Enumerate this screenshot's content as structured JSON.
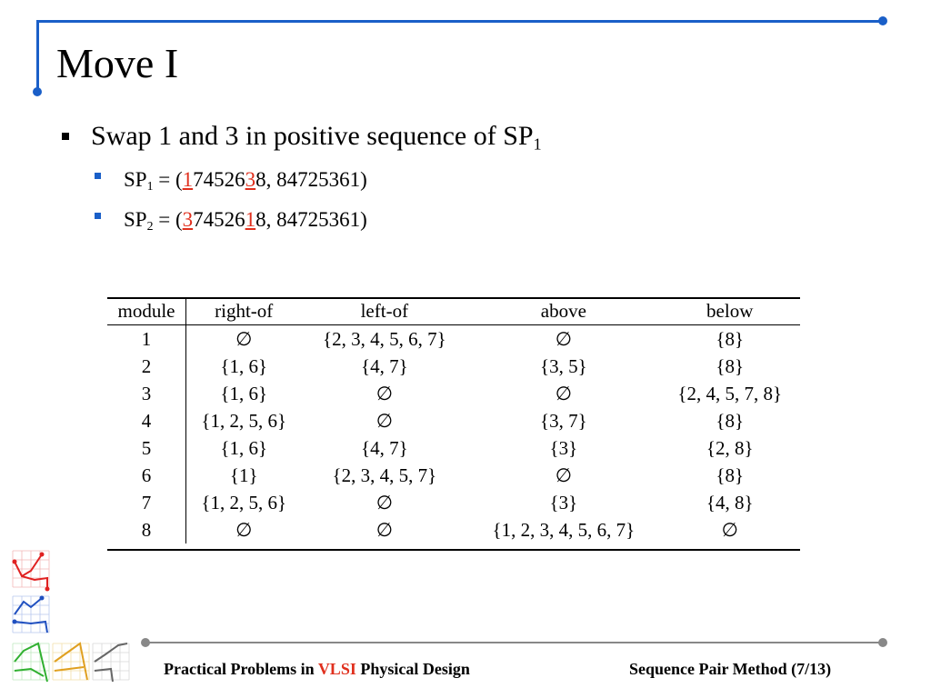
{
  "slide": {
    "title": "Move I",
    "bullet": {
      "text": "Swap 1 and 3 in positive sequence of SP",
      "sub": "1"
    },
    "subbullets": [
      {
        "label": "SP",
        "sub": "1",
        "prefix": " = (",
        "red1": "1",
        "mid": "74526",
        "red2": "3",
        "suffix": "8, 84725361)"
      },
      {
        "label": "SP",
        "sub": "2",
        "prefix": " = (",
        "red1": "3",
        "mid": "74526",
        "red2": "1",
        "suffix": "8, 84725361)"
      }
    ]
  },
  "table": {
    "headers": [
      "module",
      "right-of",
      "left-of",
      "above",
      "below"
    ],
    "rows": [
      [
        "1",
        "∅",
        "{2, 3, 4, 5, 6, 7}",
        "∅",
        "{8}"
      ],
      [
        "2",
        "{1, 6}",
        "{4, 7}",
        "{3, 5}",
        "{8}"
      ],
      [
        "3",
        "{1, 6}",
        "∅",
        "∅",
        "{2, 4, 5, 7, 8}"
      ],
      [
        "4",
        "{1, 2, 5, 6}",
        "∅",
        "{3, 7}",
        "{8}"
      ],
      [
        "5",
        "{1, 6}",
        "{4, 7}",
        "{3}",
        "{2, 8}"
      ],
      [
        "6",
        "{1}",
        "{2, 3, 4, 5, 7}",
        "∅",
        "{8}"
      ],
      [
        "7",
        "{1, 2, 5, 6}",
        "∅",
        "{3}",
        "{4, 8}"
      ],
      [
        "8",
        "∅",
        "∅",
        "{1, 2, 3, 4, 5, 6, 7}",
        "∅"
      ]
    ]
  },
  "footer": {
    "left_pre": "Practical Problems in ",
    "left_highlight": "VLSI",
    "left_post": " Physical Design",
    "right": "Sequence Pair Method (7/13)"
  },
  "colors": {
    "accent_blue": "#1a5fc8",
    "highlight_red": "#e0301e",
    "rule_gray": "#888888"
  }
}
